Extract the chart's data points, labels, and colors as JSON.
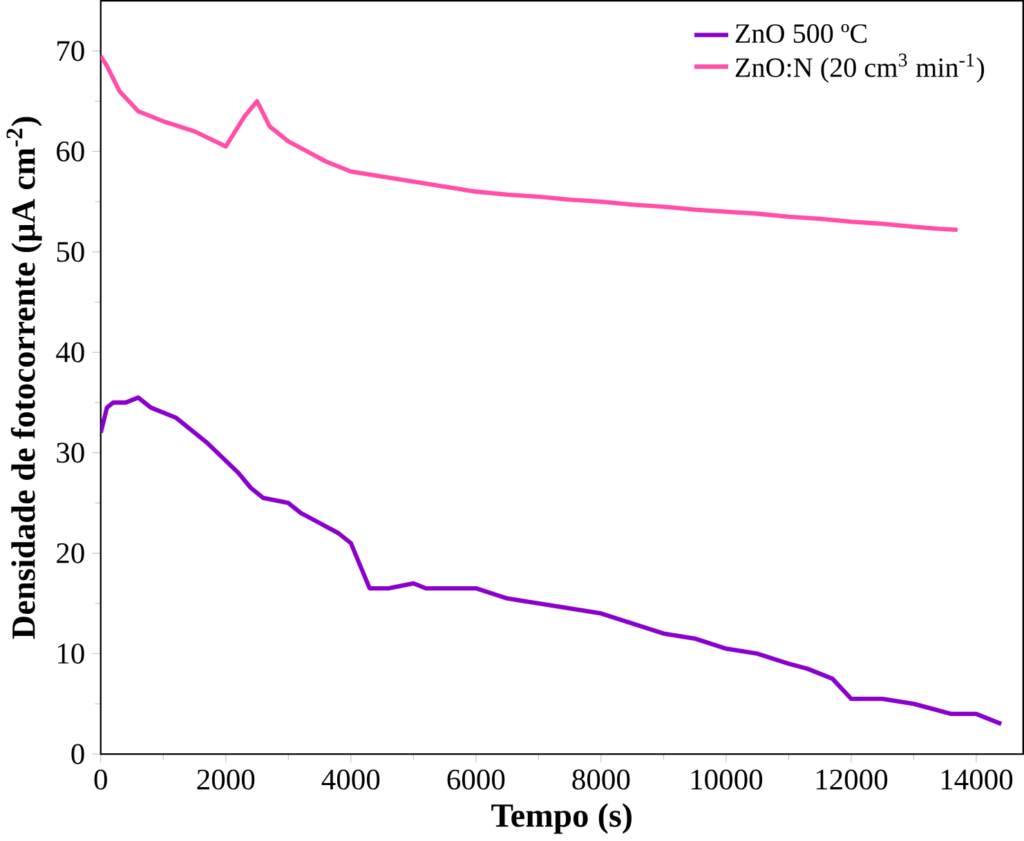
{
  "chart_data": {
    "type": "line",
    "xlabel": "Tempo (s)",
    "ylabel": "Densidade de fotocorrente (μA cm$^{-2}$)",
    "xlim": [
      0,
      14750
    ],
    "ylim": [
      0,
      75
    ],
    "xticks": [
      0,
      2000,
      4000,
      6000,
      8000,
      10000,
      12000,
      14000
    ],
    "yticks": [
      0,
      10,
      20,
      30,
      40,
      50,
      60,
      70
    ],
    "legend": "top right",
    "grid": false,
    "series": [
      {
        "name": "ZnO 500 ºC",
        "color": "#8a00cc",
        "x": [
          0,
          100,
          200,
          400,
          600,
          800,
          1200,
          1700,
          2200,
          2400,
          2600,
          3000,
          3200,
          3500,
          3800,
          4000,
          4300,
          4600,
          5000,
          5200,
          5600,
          6000,
          6500,
          7000,
          7500,
          8000,
          8500,
          9000,
          9500,
          10000,
          10500,
          11000,
          11300,
          11700,
          12000,
          12500,
          13000,
          13300,
          13600,
          14000,
          14200,
          14400
        ],
        "values": [
          32,
          34.5,
          35,
          35,
          35.5,
          34.5,
          33.5,
          31,
          28,
          26.5,
          25.5,
          25,
          24,
          23,
          22,
          21,
          16.5,
          16.5,
          17,
          16.5,
          16.5,
          16.5,
          15.5,
          15,
          14.5,
          14,
          13,
          12,
          11.5,
          10.5,
          10,
          9,
          8.5,
          7.5,
          5.5,
          5.5,
          5,
          4.5,
          4,
          4,
          3.5,
          3
        ]
      },
      {
        "name": "ZnO:N (20 cm$^{3}$ min$^{-1}$)",
        "color": "#ff4fa8",
        "x": [
          0,
          100,
          300,
          600,
          1000,
          1500,
          2000,
          2100,
          2300,
          2500,
          2700,
          3000,
          3300,
          3600,
          4000,
          4500,
          5000,
          5500,
          6000,
          6500,
          7000,
          7500,
          8000,
          8500,
          9000,
          9500,
          10000,
          10500,
          11000,
          11500,
          12000,
          12500,
          13000,
          13400,
          13700
        ],
        "values": [
          69.5,
          68.5,
          66,
          64,
          63,
          62,
          60.5,
          61.5,
          63.5,
          65,
          62.5,
          61,
          60,
          59,
          58,
          57.5,
          57,
          56.5,
          56,
          55.7,
          55.5,
          55.2,
          55,
          54.7,
          54.5,
          54.2,
          54,
          53.8,
          53.5,
          53.3,
          53,
          52.8,
          52.5,
          52.3,
          52.2
        ]
      }
    ]
  }
}
